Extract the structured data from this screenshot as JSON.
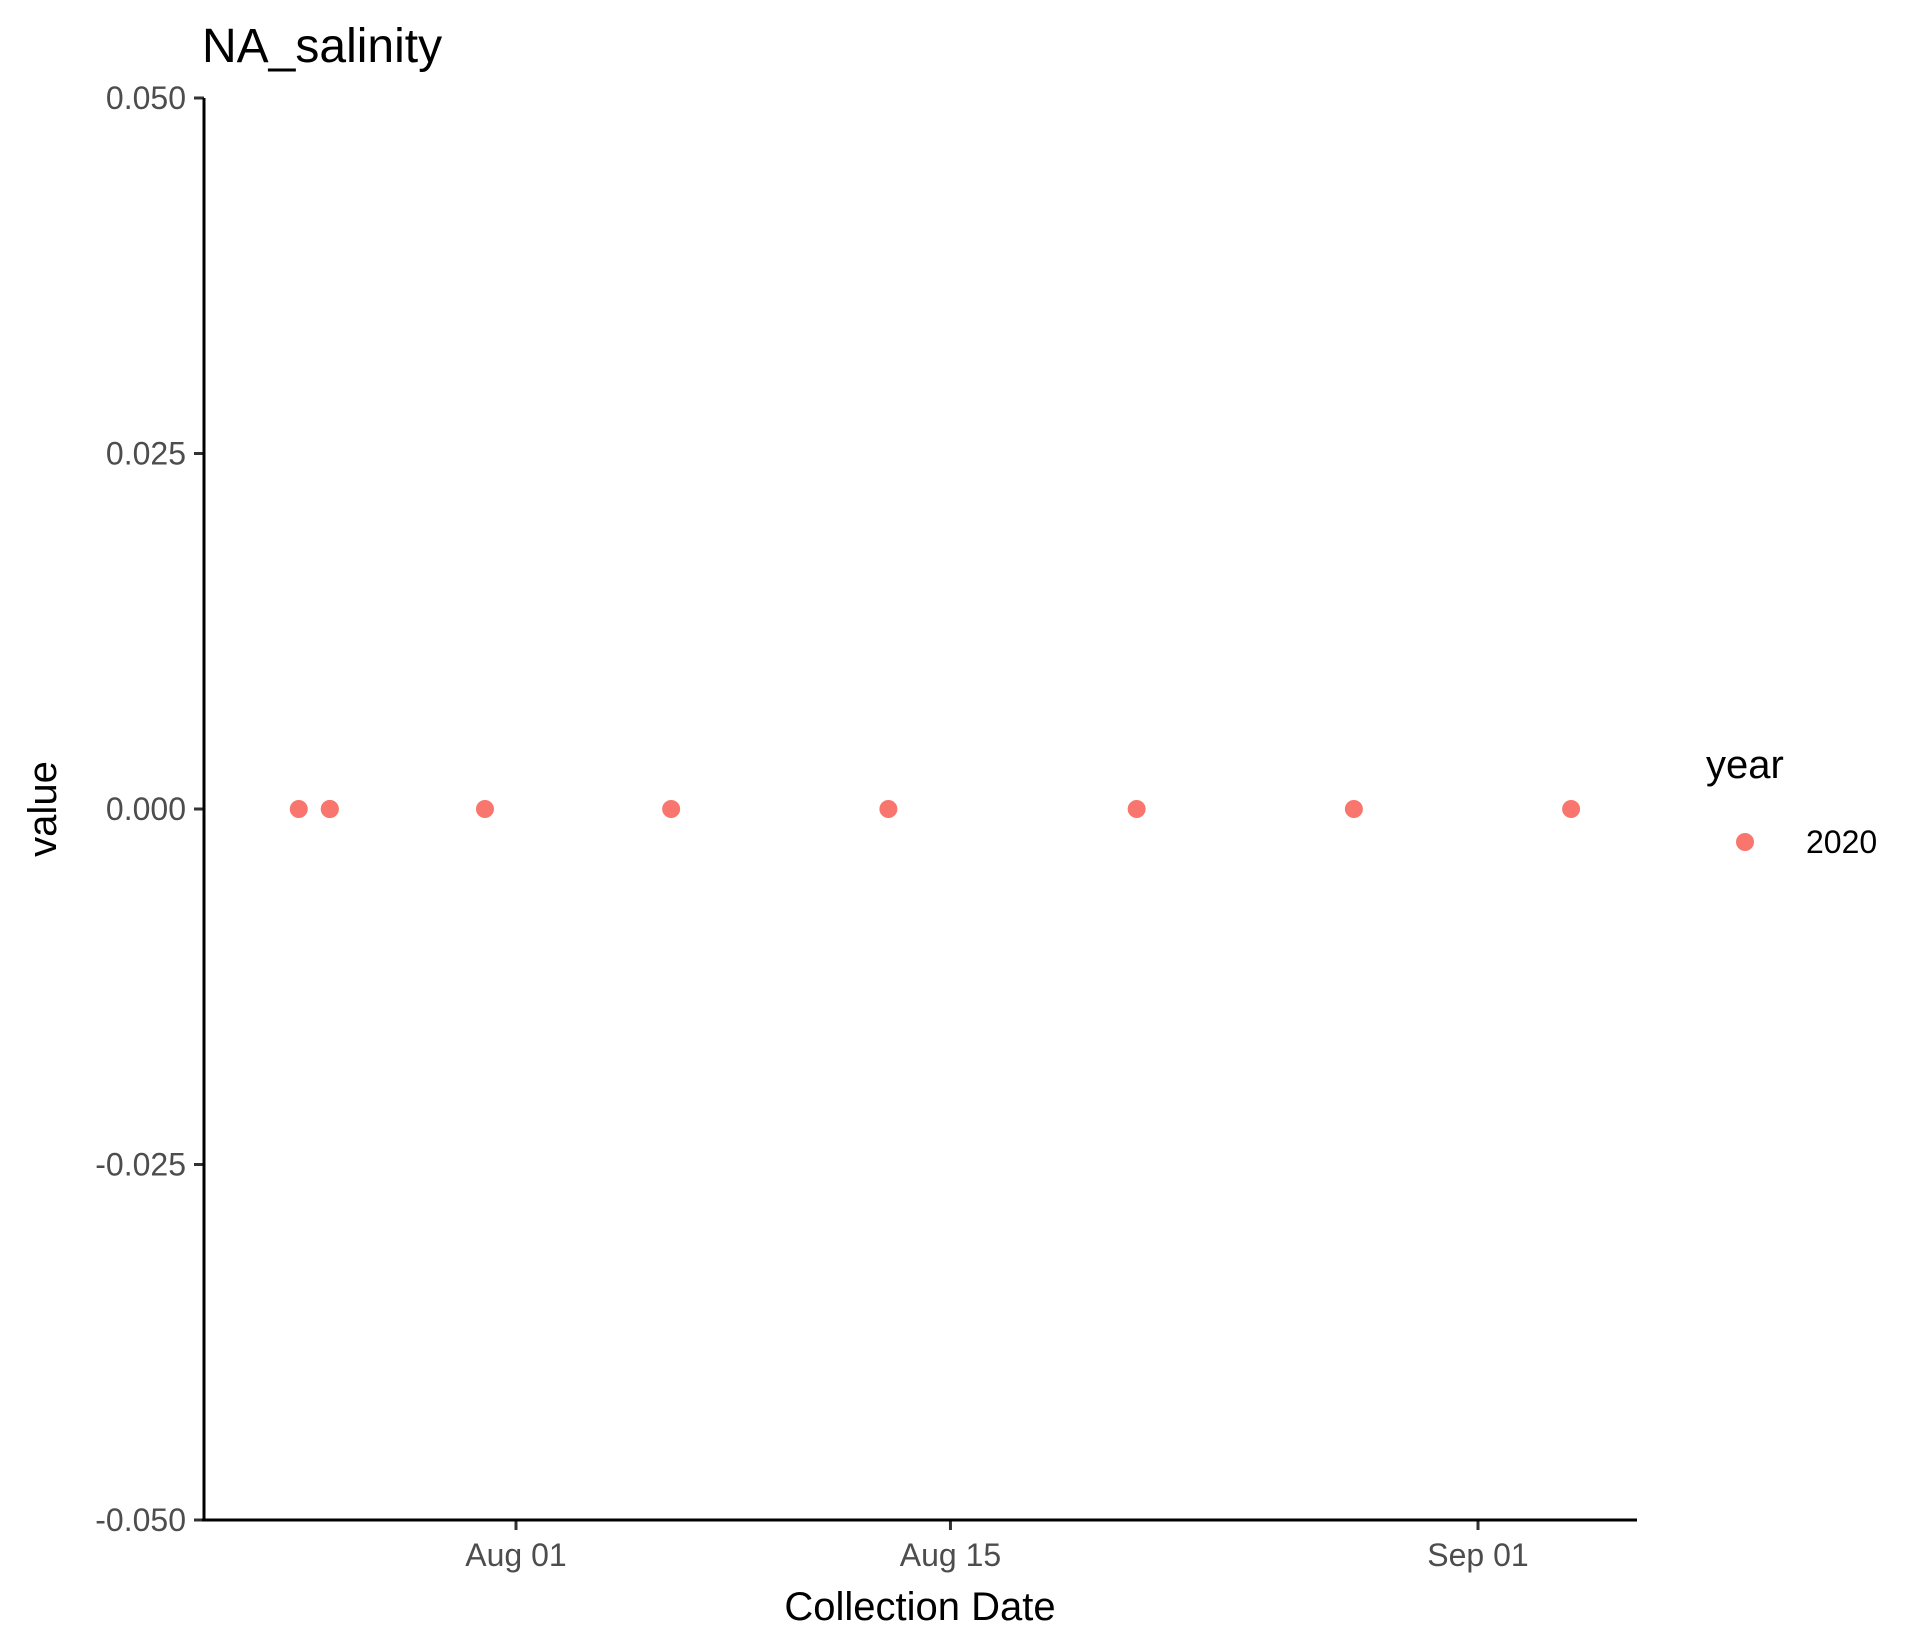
{
  "chart_data": {
    "type": "scatter",
    "title": "NA_salinity",
    "xlabel": "Collection Date",
    "ylabel": "value",
    "x_axis_type": "date",
    "xlim": [
      "2020-07-23",
      "2020-09-07"
    ],
    "ylim": [
      -0.05,
      0.05
    ],
    "x_ticks": [
      {
        "value": "2020-08-01",
        "label": "Aug 01"
      },
      {
        "value": "2020-08-15",
        "label": "Aug 15"
      },
      {
        "value": "2020-09-01",
        "label": "Sep 01"
      }
    ],
    "y_ticks": [
      {
        "value": 0.05,
        "label": "0.050"
      },
      {
        "value": 0.025,
        "label": "0.025"
      },
      {
        "value": 0.0,
        "label": "0.000"
      },
      {
        "value": -0.025,
        "label": "-0.025"
      },
      {
        "value": -0.05,
        "label": "-0.050"
      }
    ],
    "grid": false,
    "legend": {
      "title": "year",
      "position": "right",
      "entries": [
        {
          "label": "2020",
          "color": "#F8766D"
        }
      ]
    },
    "series": [
      {
        "name": "2020",
        "color": "#F8766D",
        "points": [
          {
            "x": "2020-07-25",
            "y": 0
          },
          {
            "x": "2020-07-26",
            "y": 0
          },
          {
            "x": "2020-07-26",
            "y": 0
          },
          {
            "x": "2020-07-31",
            "y": 0
          },
          {
            "x": "2020-08-06",
            "y": 0
          },
          {
            "x": "2020-08-13",
            "y": 0
          },
          {
            "x": "2020-08-21",
            "y": 0
          },
          {
            "x": "2020-08-28",
            "y": 0
          },
          {
            "x": "2020-09-04",
            "y": 0
          }
        ]
      }
    ]
  }
}
